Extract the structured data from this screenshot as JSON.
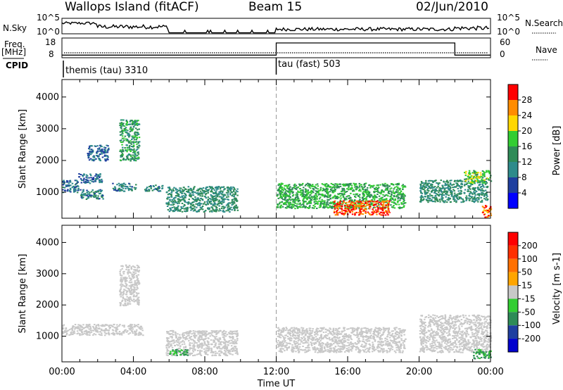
{
  "header": {
    "station": "Wallops Island (fitACF)",
    "beam": "Beam 15",
    "date": "02/Jun/2010"
  },
  "nsky_panel": {
    "label": "N.Sky",
    "right_label": "N.Search",
    "ticks": [
      "10^5",
      "10^0"
    ],
    "right_ticks": [
      "10^5",
      "10^0"
    ]
  },
  "freq_panel": {
    "label": "Freq.",
    "unit": "[MHz]",
    "right_label": "Nave",
    "ticks": [
      "18",
      "8"
    ],
    "right_ticks": [
      "60",
      "0"
    ],
    "frequency_mhz": 10.5,
    "nave_segments": [
      {
        "start_h": 0,
        "end_h": 12,
        "nave": 8
      },
      {
        "start_h": 12,
        "end_h": 22,
        "nave": 45
      },
      {
        "start_h": 22,
        "end_h": 24,
        "nave": 8
      }
    ]
  },
  "cpid_panel": {
    "label": "CPID",
    "modes": [
      {
        "name": "themis (tau) 3310",
        "start_h": 0
      },
      {
        "name": "tau (fast) 503",
        "start_h": 12
      }
    ]
  },
  "chart_data": [
    {
      "type": "heatmap",
      "parameter": "power",
      "ylabel": "Slant Range [km]",
      "xlim_hours": [
        0,
        24
      ],
      "ylim": [
        180,
        4550
      ],
      "yticks": [
        1000,
        2000,
        3000,
        4000
      ],
      "colorbar": {
        "label": "Power [dB]",
        "ticks": [
          4,
          8,
          12,
          16,
          20,
          24,
          28
        ],
        "colors": [
          "#0000ff",
          "#1f3f9f",
          "#2e8b8b",
          "#2e8b57",
          "#32cd32",
          "#ffd700",
          "#ff8c00",
          "#ff0000"
        ]
      },
      "features": [
        {
          "start_h": 0.0,
          "end_h": 0.9,
          "range_km": [
            1000,
            1400
          ],
          "level": 9
        },
        {
          "start_h": 0.9,
          "end_h": 2.2,
          "range_km": [
            1300,
            1600
          ],
          "level": 8
        },
        {
          "start_h": 1.0,
          "end_h": 2.3,
          "range_km": [
            800,
            1100
          ],
          "level": 11
        },
        {
          "start_h": 1.4,
          "end_h": 2.6,
          "range_km": [
            2000,
            2500
          ],
          "level": 8
        },
        {
          "start_h": 2.8,
          "end_h": 4.1,
          "range_km": [
            1050,
            1300
          ],
          "level": 10
        },
        {
          "start_h": 3.2,
          "end_h": 4.3,
          "range_km": [
            2000,
            3300
          ],
          "level": 14
        },
        {
          "start_h": 4.6,
          "end_h": 5.6,
          "range_km": [
            1050,
            1250
          ],
          "level": 11
        },
        {
          "start_h": 5.8,
          "end_h": 9.8,
          "range_km": [
            400,
            1200
          ],
          "level": 12
        },
        {
          "start_h": 12.0,
          "end_h": 19.2,
          "range_km": [
            500,
            1300
          ],
          "level": 16
        },
        {
          "start_h": 15.2,
          "end_h": 18.3,
          "range_km": [
            300,
            750
          ],
          "level": 28
        },
        {
          "start_h": 20.0,
          "end_h": 23.8,
          "range_km": [
            700,
            1400
          ],
          "level": 12
        },
        {
          "start_h": 22.5,
          "end_h": 24.0,
          "range_km": [
            1300,
            1700
          ],
          "level": 18
        },
        {
          "start_h": 23.5,
          "end_h": 24.0,
          "range_km": [
            200,
            600
          ],
          "level": 26
        }
      ]
    },
    {
      "type": "heatmap",
      "parameter": "velocity",
      "ylabel": "Slant Range [km]",
      "xlabel": "Time UT",
      "xlim_hours": [
        0,
        24
      ],
      "ylim": [
        180,
        4550
      ],
      "yticks": [
        1000,
        2000,
        3000,
        4000
      ],
      "xtick_labels": [
        "00:00",
        "04:00",
        "08:00",
        "12:00",
        "16:00",
        "20:00",
        "00:00"
      ],
      "colorbar": {
        "label": "Velocity [m s-1]",
        "ticks": [
          200,
          100,
          50,
          15,
          -15,
          -50,
          -100,
          -200
        ],
        "colors": [
          "#0000cd",
          "#1f3fa0",
          "#2e8b57",
          "#32cd32",
          "#c8c8c8",
          "#ffa500",
          "#ff7000",
          "#ff3000",
          "#ff0000"
        ]
      },
      "features": [
        {
          "start_h": 0.0,
          "end_h": 4.5,
          "range_km": [
            1050,
            1400
          ],
          "velocity": 0
        },
        {
          "start_h": 3.2,
          "end_h": 4.3,
          "range_km": [
            2000,
            3300
          ],
          "velocity": 0
        },
        {
          "start_h": 5.8,
          "end_h": 9.8,
          "range_km": [
            400,
            1200
          ],
          "velocity": 0
        },
        {
          "start_h": 6.0,
          "end_h": 7.0,
          "range_km": [
            400,
            600
          ],
          "velocity": 60
        },
        {
          "start_h": 12.0,
          "end_h": 19.2,
          "range_km": [
            500,
            1300
          ],
          "velocity": 0
        },
        {
          "start_h": 20.0,
          "end_h": 24.0,
          "range_km": [
            500,
            1700
          ],
          "velocity": 0
        },
        {
          "start_h": 23.0,
          "end_h": 24.0,
          "range_km": [
            300,
            600
          ],
          "velocity": 60
        }
      ]
    }
  ]
}
